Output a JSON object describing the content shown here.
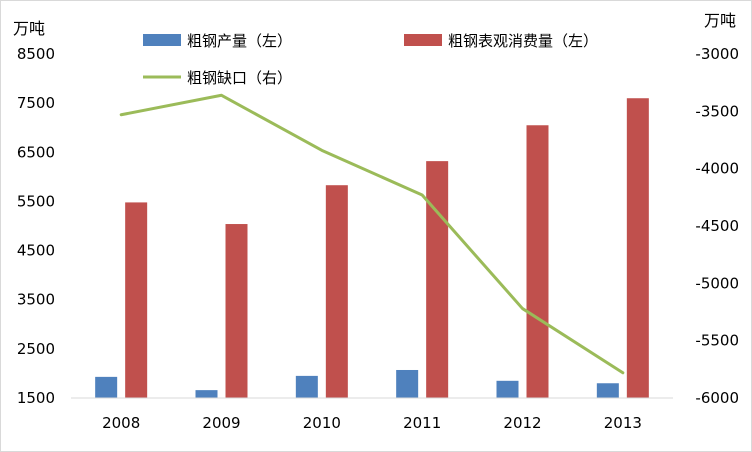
{
  "chart_data": {
    "type": "bar+line",
    "title": "",
    "y_left_unit": "万吨",
    "y_right_unit": "万吨",
    "categories": [
      "2008",
      "2009",
      "2010",
      "2011",
      "2012",
      "2013"
    ],
    "y_left": {
      "ylim": [
        1500,
        8500
      ],
      "ticks": [
        "8500",
        "7500",
        "6500",
        "5500",
        "4500",
        "3500",
        "2500",
        "1500"
      ]
    },
    "y_right": {
      "ylim": [
        -6000,
        -3000
      ],
      "ticks": [
        "-3000",
        "-3500",
        "-4000",
        "-4500",
        "-5000",
        "-5500",
        "-6000"
      ]
    },
    "series": [
      {
        "name": "粗钢产量（左）",
        "type": "bar",
        "axis": "left",
        "color": "#4f81bd",
        "values": [
          1930,
          1660,
          1950,
          2070,
          1850,
          1800
        ]
      },
      {
        "name": "粗钢表观消费量（左）",
        "type": "bar",
        "axis": "left",
        "color": "#c0504d",
        "values": [
          5480,
          5040,
          5830,
          6320,
          7050,
          7600
        ]
      },
      {
        "name": "粗钢缺口（右）",
        "type": "line",
        "axis": "right",
        "color": "#9bbb59",
        "values": [
          -3530,
          -3360,
          -3840,
          -4230,
          -5220,
          -5780
        ]
      }
    ],
    "grid": false,
    "legend_position": "top"
  }
}
